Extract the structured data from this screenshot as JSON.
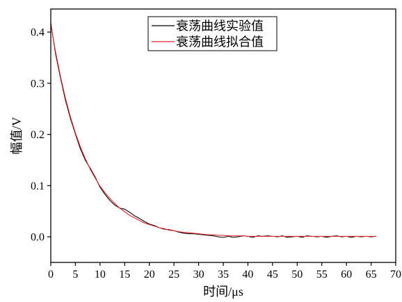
{
  "chart_data": {
    "type": "line",
    "xlabel": "时间/μs",
    "ylabel": "幅值/V",
    "xlim": [
      0,
      70
    ],
    "ylim": [
      -0.05,
      0.445
    ],
    "xticks": [
      0,
      5,
      10,
      15,
      20,
      25,
      30,
      35,
      40,
      45,
      50,
      55,
      60,
      65,
      70
    ],
    "yticks": [
      0,
      0.1,
      0.2,
      0.3,
      0.4
    ],
    "ytick_labels": [
      "0.0",
      "0.1",
      "0.2",
      "0.3",
      "0.4"
    ],
    "grid": false,
    "legend_position": "top-center",
    "x": [
      0,
      1,
      2,
      3,
      4,
      5,
      6,
      7,
      8,
      9,
      10,
      11,
      12,
      13,
      14,
      15,
      16,
      17,
      18,
      19,
      20,
      21,
      22,
      23,
      24,
      25,
      26,
      27,
      28,
      29,
      30,
      31,
      32,
      33,
      34,
      35,
      36,
      37,
      38,
      39,
      40,
      41,
      42,
      43,
      44,
      45,
      46,
      47,
      48,
      49,
      50,
      51,
      52,
      53,
      54,
      55,
      56,
      57,
      58,
      59,
      60,
      61,
      62,
      63,
      64,
      65,
      66
    ],
    "series": [
      {
        "name": "衰荡曲线实验值",
        "color": "#000000",
        "values": [
          0.418,
          0.356,
          0.309,
          0.266,
          0.231,
          0.201,
          0.172,
          0.15,
          0.134,
          0.117,
          0.097,
          0.083,
          0.071,
          0.062,
          0.056,
          0.054,
          0.048,
          0.041,
          0.036,
          0.03,
          0.025,
          0.022,
          0.018,
          0.015,
          0.014,
          0.012,
          0.009,
          0.007,
          0.006,
          0.006,
          0.005,
          0.004,
          0.003,
          0.002,
          0,
          -0.001,
          0.001,
          -0.001,
          0,
          0.002,
          0.001,
          -0.001,
          0.002,
          0.001,
          0.002,
          0.001,
          0,
          0.002,
          -0.001,
          0,
          0.001,
          -0.001,
          0.002,
          0.001,
          0,
          0.001,
          -0.001,
          0.001,
          0.002,
          0,
          0.001,
          -0.001,
          0.001,
          0,
          0.001,
          0,
          0.001
        ]
      },
      {
        "name": "衰荡曲线拟合值",
        "color": "#e4252b",
        "values": [
          0.415,
          0.36,
          0.312,
          0.27,
          0.234,
          0.203,
          0.176,
          0.153,
          0.132,
          0.115,
          0.099,
          0.086,
          0.075,
          0.065,
          0.056,
          0.049,
          0.042,
          0.037,
          0.032,
          0.027,
          0.024,
          0.021,
          0.018,
          0.016,
          0.013,
          0.012,
          0.01,
          0.009,
          0.008,
          0.007,
          0.006,
          0.005,
          0.004,
          0.004,
          0.003,
          0.003,
          0.002,
          0.002,
          0.002,
          0.002,
          0.001,
          0.001,
          0.001,
          0.001,
          0.001,
          0.001,
          0.001,
          0.001,
          0.001,
          0.001,
          0.001,
          0.001,
          0.001,
          0.001,
          0.001,
          0.001,
          0.001,
          0.001,
          0.001,
          0.001,
          0.001,
          0.001,
          0.001,
          0.001,
          0.001,
          0.001,
          0.001
        ]
      }
    ]
  }
}
